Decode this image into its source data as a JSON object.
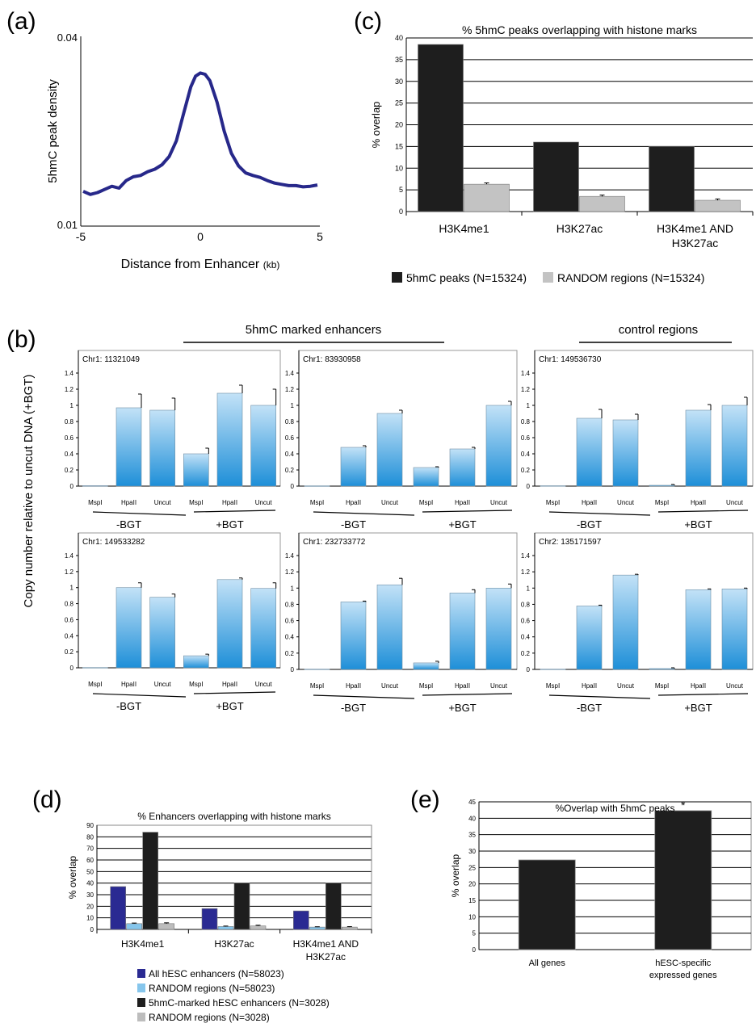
{
  "panels": {
    "a": {
      "letter": "(a)",
      "chart_data": {
        "type": "line",
        "title": "",
        "xlabel": "Distance from Enhancer",
        "xlabel_unit": "(kb)",
        "ylabel": "5hmC peak density",
        "x_ticks": [
          "-5",
          "0",
          "5"
        ],
        "y_ticks": [
          "0.01",
          "0.04"
        ],
        "xlim": [
          -5,
          5
        ],
        "ylim": [
          0.01,
          0.04
        ],
        "line_color": "#27288a",
        "x": [
          -4.9,
          -4.6,
          -4.3,
          -4.0,
          -3.7,
          -3.4,
          -3.1,
          -2.8,
          -2.5,
          -2.2,
          -1.9,
          -1.6,
          -1.3,
          -1.0,
          -0.7,
          -0.4,
          -0.2,
          0.0,
          0.2,
          0.4,
          0.7,
          1.0,
          1.3,
          1.6,
          1.9,
          2.2,
          2.5,
          2.8,
          3.1,
          3.4,
          3.7,
          4.0,
          4.3,
          4.6,
          4.9
        ],
        "y": [
          0.0155,
          0.015,
          0.0153,
          0.0158,
          0.0163,
          0.016,
          0.0172,
          0.0178,
          0.018,
          0.0186,
          0.019,
          0.0197,
          0.021,
          0.0235,
          0.0278,
          0.032,
          0.0337,
          0.0342,
          0.034,
          0.033,
          0.0296,
          0.025,
          0.0215,
          0.0195,
          0.0184,
          0.018,
          0.0177,
          0.0172,
          0.0168,
          0.0166,
          0.0164,
          0.0164,
          0.0162,
          0.0163,
          0.0165
        ]
      }
    },
    "c": {
      "letter": "(c)",
      "chart_data": {
        "type": "bar",
        "title": "% 5hmC peaks overlapping with histone marks",
        "xlabel": "",
        "ylabel": "% overlap",
        "ylim": [
          0,
          40
        ],
        "y_ticks": [
          "0",
          "5",
          "10",
          "15",
          "20",
          "25",
          "30",
          "35",
          "40"
        ],
        "categories": [
          [
            "H3K4me1"
          ],
          [
            "H3K27ac"
          ],
          [
            "H3K4me1 AND",
            "H3K27ac"
          ]
        ],
        "series": [
          {
            "name": "5hmC peaks (N=15324)",
            "color": "#1e1e1e",
            "values": [
              38.5,
              16.0,
              15.0
            ],
            "errors": [
              0,
              0,
              0
            ]
          },
          {
            "name": "RANDOM regions (N=15324)",
            "color": "#c3c3c3",
            "values": [
              6.3,
              3.5,
              2.6
            ],
            "errors": [
              0.3,
              0.3,
              0.3
            ]
          }
        ],
        "legend": "bottom"
      }
    },
    "b": {
      "letter": "(b)",
      "group_labels": [
        "5hmC marked enhancers",
        "control regions"
      ],
      "ylabel": "Copy number relative to uncut DNA (+BGT)",
      "condition_labels": [
        "-BGT",
        "+BGT"
      ],
      "chart_data": [
        {
          "type": "bar",
          "title": "Chr1: 11321049",
          "categories": [
            "MspI",
            "HpaII",
            "Uncut",
            "MspI",
            "HpaII",
            "Uncut"
          ],
          "values": [
            0.005,
            0.97,
            0.94,
            0.4,
            1.15,
            1.0
          ],
          "errors": [
            0.0,
            0.17,
            0.15,
            0.07,
            0.1,
            0.2
          ],
          "ylim": [
            0,
            1.4
          ],
          "y_ticks": [
            "0",
            "0.2",
            "0.4",
            "0.6",
            "0.8",
            "1",
            "1.2",
            "1.4"
          ]
        },
        {
          "type": "bar",
          "title": "Chr1: 83930958",
          "categories": [
            "MspI",
            "HpaII",
            "Uncut",
            "MspI",
            "HpaII",
            "Uncut"
          ],
          "values": [
            0.003,
            0.48,
            0.9,
            0.23,
            0.46,
            1.0
          ],
          "errors": [
            0.0,
            0.02,
            0.04,
            0.01,
            0.02,
            0.05
          ],
          "ylim": [
            0,
            1.4
          ],
          "y_ticks": [
            "0",
            "0.2",
            "0.4",
            "0.6",
            "0.8",
            "1",
            "1.2",
            "1.4"
          ]
        },
        {
          "type": "bar",
          "title": "Chr1: 149536730",
          "categories": [
            "MspI",
            "HpaII",
            "Uncut",
            "MspI",
            "HpaII",
            "Uncut"
          ],
          "values": [
            0.004,
            0.84,
            0.82,
            0.01,
            0.94,
            1.0
          ],
          "errors": [
            0.0,
            0.11,
            0.07,
            0.01,
            0.07,
            0.1
          ],
          "ylim": [
            0,
            1.4
          ],
          "y_ticks": [
            "0",
            "0.2",
            "0.4",
            "0.6",
            "0.8",
            "1",
            "1.2",
            "1.4"
          ]
        },
        {
          "type": "bar",
          "title": "Chr1: 149533282",
          "categories": [
            "MspI",
            "HpaII",
            "Uncut",
            "MspI",
            "HpaII",
            "Uncut"
          ],
          "values": [
            0.003,
            1.0,
            0.88,
            0.15,
            1.1,
            0.99
          ],
          "errors": [
            0.0,
            0.06,
            0.04,
            0.02,
            0.02,
            0.07
          ],
          "ylim": [
            0,
            1.4
          ],
          "y_ticks": [
            "0",
            "0.2",
            "0.4",
            "0.6",
            "0.8",
            "1",
            "1.2",
            "1.4"
          ]
        },
        {
          "type": "bar",
          "title": "Chr1: 232733772",
          "categories": [
            "MspI",
            "HpaII",
            "Uncut",
            "MspI",
            "HpaII",
            "Uncut"
          ],
          "values": [
            0.003,
            0.83,
            1.04,
            0.08,
            0.94,
            1.0
          ],
          "errors": [
            0.0,
            0.01,
            0.08,
            0.02,
            0.04,
            0.05
          ],
          "ylim": [
            0,
            1.4
          ],
          "y_ticks": [
            "0",
            "0.2",
            "0.4",
            "0.6",
            "0.8",
            "1",
            "1.2",
            "1.4"
          ]
        },
        {
          "type": "bar",
          "title": "Chr2: 135171597",
          "categories": [
            "MspI",
            "HpaII",
            "Uncut",
            "MspI",
            "HpaII",
            "Uncut"
          ],
          "values": [
            0.003,
            0.78,
            1.16,
            0.01,
            0.98,
            0.99
          ],
          "errors": [
            0.0,
            0.01,
            0.01,
            0.01,
            0.01,
            0.01
          ],
          "ylim": [
            0,
            1.4
          ],
          "y_ticks": [
            "0",
            "0.2",
            "0.4",
            "0.6",
            "0.8",
            "1",
            "1.2",
            "1.4"
          ]
        }
      ]
    },
    "d": {
      "letter": "(d)",
      "chart_data": {
        "type": "bar",
        "title": "% Enhancers overlapping with histone marks",
        "xlabel": "",
        "ylabel": "% overlap",
        "ylim": [
          0,
          90
        ],
        "y_ticks": [
          "0",
          "10",
          "20",
          "30",
          "40",
          "50",
          "60",
          "70",
          "80",
          "90"
        ],
        "categories": [
          [
            "H3K4me1"
          ],
          [
            "H3K27ac"
          ],
          [
            "H3K4me1 AND",
            "H3K27ac"
          ]
        ],
        "series": [
          {
            "name": "All hESC enhancers (N=58023)",
            "color": "#2a2a92",
            "values": [
              37,
              18,
              16
            ],
            "errors": [
              0,
              0,
              0
            ]
          },
          {
            "name": "RANDOM regions (N=58023)",
            "color": "#86c6ec",
            "values": [
              5,
              2.5,
              2
            ],
            "errors": [
              0.5,
              0.4,
              0.3
            ]
          },
          {
            "name": "5hmC-marked hESC enhancers (N=3028)",
            "color": "#1e1e1e",
            "values": [
              84,
              40,
              40
            ],
            "errors": [
              0,
              0,
              0
            ]
          },
          {
            "name": "RANDOM regions (N=3028)",
            "color": "#bdbdbd",
            "values": [
              5,
              3,
              2
            ],
            "errors": [
              0.7,
              0.6,
              0.4
            ]
          }
        ],
        "legend": "bottom"
      }
    },
    "e": {
      "letter": "(e)",
      "chart_data": {
        "type": "bar",
        "title": "%Overlap with 5hmC peaks",
        "xlabel": "",
        "ylabel": "% overlap",
        "ylim": [
          0,
          45
        ],
        "y_ticks": [
          "0",
          "5",
          "10",
          "15",
          "20",
          "25",
          "30",
          "35",
          "40",
          "45"
        ],
        "categories": [
          [
            "All genes"
          ],
          [
            "hESC-specific",
            "expressed genes"
          ]
        ],
        "values": [
          27.3,
          42.3
        ],
        "color": "#1e1e1e",
        "annotations": [
          {
            "category": 1,
            "text": "*"
          }
        ]
      }
    }
  }
}
